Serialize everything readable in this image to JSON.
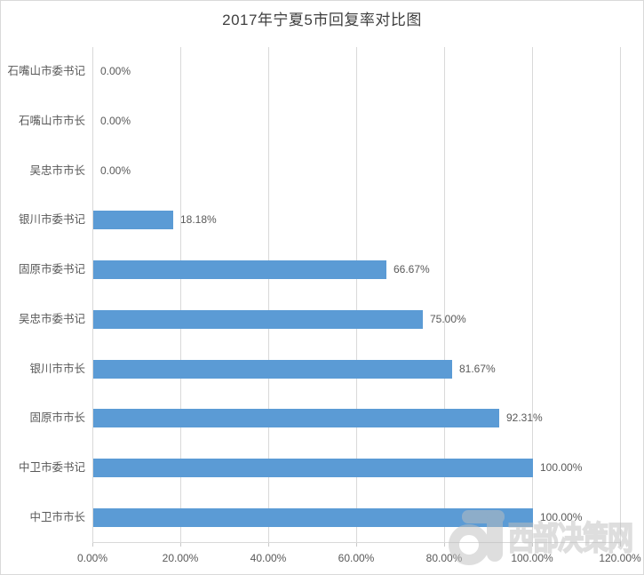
{
  "chart_data": {
    "type": "bar",
    "orientation": "horizontal",
    "title": "2017年宁夏5市回复率对比图",
    "categories": [
      "石嘴山市委书记",
      "石嘴山市市长",
      "吴忠市市长",
      "银川市委书记",
      "固原市委书记",
      "吴忠市委书记",
      "银川市市长",
      "固原市市长",
      "中卫市委书记",
      "中卫市市长"
    ],
    "values": [
      0,
      0,
      0,
      18.18,
      66.67,
      75.0,
      81.67,
      92.31,
      100.0,
      100.0
    ],
    "data_labels": [
      "0.00%",
      "0.00%",
      "0.00%",
      "18.18%",
      "66.67%",
      "75.00%",
      "81.67%",
      "92.31%",
      "100.00%",
      "100.00%"
    ],
    "x_tick_labels": [
      "0.00%",
      "20.00%",
      "40.00%",
      "60.00%",
      "80.00%",
      "100.00%",
      "120.00%"
    ],
    "xlim": [
      0,
      120
    ],
    "xlabel": "",
    "ylabel": "",
    "grid": true,
    "legend": false,
    "bar_color": "#5B9BD5",
    "gridline_color": "#d9d9d9",
    "text_color": "#595959",
    "title_color": "#3f3f3f"
  },
  "watermark": {
    "text": "西部决策网",
    "logo": "xibu-juece-d-logo"
  }
}
